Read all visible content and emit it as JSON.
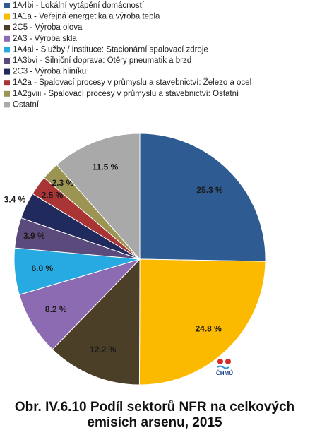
{
  "chart_data": {
    "type": "pie",
    "title": [
      "Obr. IV.6.10  Podíl sektorů NFR na celkových",
      "emisích arsenu, 2015"
    ],
    "logo_text": "ČHMÚ",
    "series": [
      {
        "name": "1A4bi - Lokální vytápění domácností",
        "color": "#2e5c92",
        "values": [
          25.3
        ],
        "value_labels": [
          "25.3 %"
        ]
      },
      {
        "name": "1A1a - Veřejná energetika a výroba tepla",
        "color": "#fbba00",
        "values": [
          24.8
        ],
        "value_labels": [
          "24.8 %"
        ]
      },
      {
        "name": "2C5 - Výroba olova",
        "color": "#4b3f28",
        "values": [
          12.2
        ],
        "value_labels": [
          "12.2 %"
        ]
      },
      {
        "name": "2A3 - Výroba skla",
        "color": "#8d6bb2",
        "values": [
          8.2
        ],
        "value_labels": [
          "8.2 %"
        ]
      },
      {
        "name": "1A4ai - Služby / instituce: Stacionární spalovací zdroje",
        "color": "#27aae1",
        "values": [
          6.0
        ],
        "value_labels": [
          "6.0 %"
        ]
      },
      {
        "name": "1A3bvi - Silniční doprava: Otěry pneumatik a brzd",
        "color": "#5b4a7c",
        "values": [
          3.9
        ],
        "value_labels": [
          "3.9 %"
        ]
      },
      {
        "name": "2C3 - Výroba hliníku",
        "color": "#212a5c",
        "values": [
          3.4
        ],
        "value_labels": [
          "3.4 %"
        ]
      },
      {
        "name": "1A2a - Spalovací procesy v průmyslu a stavebnictví: Železo a ocel",
        "color": "#a83434",
        "values": [
          2.5
        ],
        "value_labels": [
          "2.5 %"
        ]
      },
      {
        "name": "1A2gviii - Spalovací procesy v průmyslu a stavebnictví: Ostatní",
        "color": "#9b9452",
        "values": [
          2.3
        ],
        "value_labels": [
          "2.3 %"
        ]
      },
      {
        "name": "Ostatní",
        "color": "#a9a9a9",
        "values": [
          11.5
        ],
        "value_labels": [
          "11.5 %"
        ]
      }
    ]
  }
}
